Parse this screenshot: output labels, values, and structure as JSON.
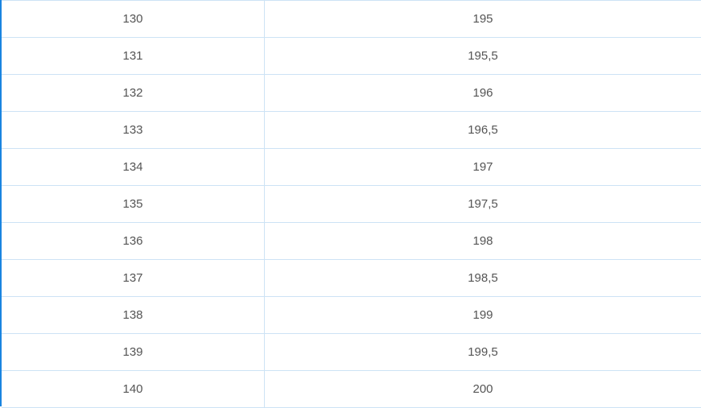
{
  "table": {
    "rows": [
      [
        "130",
        "195"
      ],
      [
        "131",
        "195,5"
      ],
      [
        "132",
        "196"
      ],
      [
        "133",
        "196,5"
      ],
      [
        "134",
        "197"
      ],
      [
        "135",
        "197,5"
      ],
      [
        "136",
        "198"
      ],
      [
        "137",
        "198,5"
      ],
      [
        "138",
        "199"
      ],
      [
        "139",
        "199,5"
      ],
      [
        "140",
        "200"
      ]
    ]
  },
  "colors": {
    "accent": "#1a84e0",
    "grid": "#cde3f5",
    "text": "#555555"
  }
}
